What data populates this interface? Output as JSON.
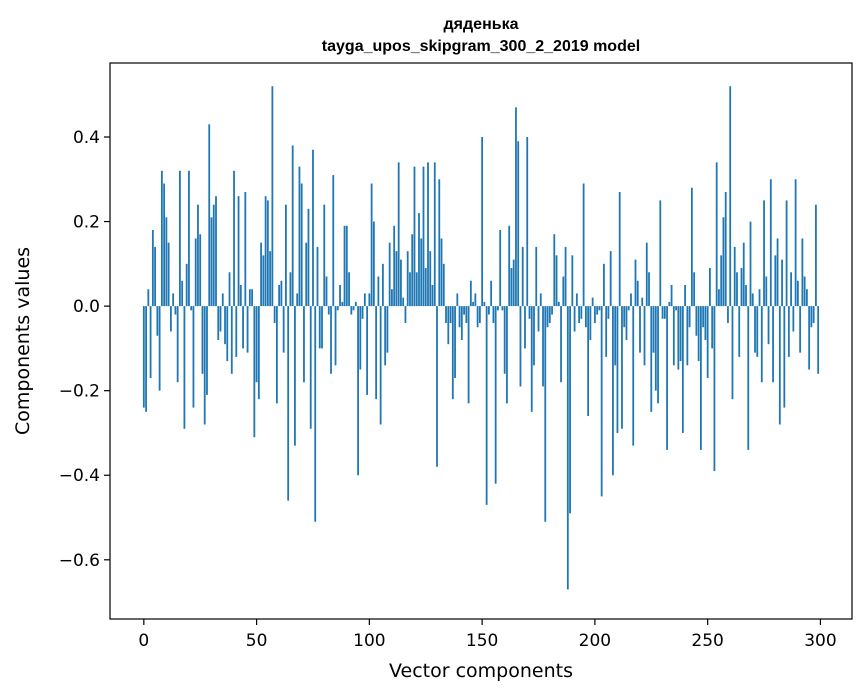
{
  "chart_data": {
    "type": "bar",
    "title_line1": "дяденька",
    "title_line2": "tayga_upos_skipgram_300_2_2019 model",
    "xlabel": "Vector components",
    "ylabel": "Components values",
    "xlim": [
      -15,
      314
    ],
    "ylim": [
      -0.74,
      0.575
    ],
    "xticks": [
      0,
      50,
      100,
      150,
      200,
      250,
      300
    ],
    "xtick_labels": [
      "0",
      "50",
      "100",
      "150",
      "200",
      "250",
      "300"
    ],
    "yticks": [
      -0.6,
      -0.4,
      -0.2,
      0.0,
      0.2,
      0.4
    ],
    "ytick_labels": [
      "−0.6",
      "−0.4",
      "−0.2",
      "0.0",
      "0.2",
      "0.4"
    ],
    "bar_color": "#1f77b4",
    "values": [
      -0.24,
      -0.25,
      0.04,
      -0.17,
      0.18,
      0.14,
      -0.07,
      -0.2,
      0.32,
      0.29,
      0.21,
      0.15,
      -0.06,
      0.03,
      -0.02,
      -0.18,
      0.32,
      0.06,
      -0.29,
      0.1,
      0.32,
      -0.01,
      -0.24,
      0.16,
      0.24,
      0.17,
      -0.16,
      -0.28,
      -0.21,
      0.43,
      0.21,
      0.24,
      0.26,
      -0.08,
      -0.06,
      0.03,
      -0.09,
      -0.13,
      0.08,
      -0.16,
      0.32,
      -0.12,
      0.26,
      0.05,
      -0.1,
      0.27,
      -0.11,
      0.04,
      0.04,
      -0.31,
      -0.18,
      -0.22,
      0.15,
      0.12,
      0.26,
      0.25,
      0.13,
      0.52,
      -0.04,
      -0.23,
      0.05,
      0.06,
      -0.11,
      0.24,
      -0.46,
      0.08,
      0.38,
      -0.33,
      0.03,
      0.33,
      0.29,
      -0.18,
      0.15,
      0.23,
      -0.29,
      0.37,
      -0.51,
      0.14,
      -0.1,
      -0.1,
      0.24,
      0.07,
      -0.02,
      -0.16,
      0.31,
      -0.14,
      -0.01,
      0.05,
      0.01,
      0.19,
      0.19,
      0.08,
      -0.02,
      -0.01,
      0.01,
      -0.4,
      -0.15,
      -0.03,
      0.03,
      -0.21,
      0.03,
      0.29,
      0.2,
      -0.22,
      0.07,
      -0.28,
      0.1,
      -0.14,
      -0.11,
      0.15,
      0.04,
      0.19,
      0.13,
      0.34,
      0.11,
      0.02,
      -0.04,
      0.13,
      0.08,
      0.17,
      0.33,
      0.08,
      0.22,
      0.16,
      0.33,
      0.09,
      0.34,
      0.13,
      0.05,
      0.34,
      -0.38,
      0.3,
      0.16,
      0.1,
      -0.04,
      -0.09,
      -0.04,
      -0.22,
      -0.17,
      0.03,
      -0.05,
      -0.08,
      -0.02,
      -0.04,
      -0.23,
      0.06,
      0.01,
      0.03,
      -0.05,
      -0.04,
      0.4,
      0.01,
      -0.47,
      -0.02,
      0.06,
      -0.04,
      -0.42,
      -0.01,
      0.18,
      -0.01,
      -0.16,
      -0.23,
      0.19,
      0.09,
      0.11,
      0.47,
      0.39,
      -0.19,
      0.14,
      -0.1,
      0.4,
      -0.03,
      -0.25,
      -0.14,
      0.14,
      -0.06,
      0.03,
      -0.19,
      -0.51,
      -0.05,
      -0.04,
      -0.02,
      0.17,
      0.12,
      0.01,
      -0.18,
      0.07,
      0.14,
      -0.67,
      -0.49,
      0.12,
      -0.06,
      0.03,
      -0.04,
      -0.03,
      0.29,
      -0.05,
      -0.26,
      -0.08,
      0.02,
      -0.04,
      -0.02,
      -0.01,
      -0.45,
      0.1,
      -0.12,
      -0.03,
      0.13,
      -0.4,
      -0.14,
      -0.3,
      0.27,
      -0.29,
      -0.05,
      -0.08,
      -0.01,
      0.03,
      -0.33,
      0.11,
      0.06,
      -0.11,
      0.02,
      -0.14,
      0.15,
      0.08,
      -0.25,
      -0.11,
      -0.2,
      -0.23,
      0.25,
      -0.03,
      -0.03,
      -0.34,
      0.01,
      0.05,
      -0.14,
      -0.01,
      -0.15,
      -0.13,
      -0.3,
      0.05,
      -0.14,
      -0.05,
      0.28,
      0.08,
      -0.07,
      -0.13,
      -0.34,
      -0.05,
      -0.08,
      -0.17,
      0.09,
      -0.1,
      -0.39,
      0.34,
      0.04,
      0.12,
      0.21,
      0.27,
      -0.04,
      0.52,
      -0.22,
      0.14,
      0.08,
      -0.12,
      0.09,
      0.15,
      0.05,
      -0.34,
      0.2,
      0.03,
      -0.11,
      -0.12,
      0.04,
      -0.18,
      0.25,
      0.07,
      -0.09,
      0.3,
      -0.18,
      0.12,
      0.16,
      -0.28,
      0.11,
      -0.24,
      0.25,
      -0.12,
      0.08,
      -0.06,
      0.3,
      0.06,
      -0.11,
      0.16,
      0.07,
      0.04,
      -0.15,
      -0.05,
      -0.04,
      0.24,
      -0.16
    ]
  }
}
